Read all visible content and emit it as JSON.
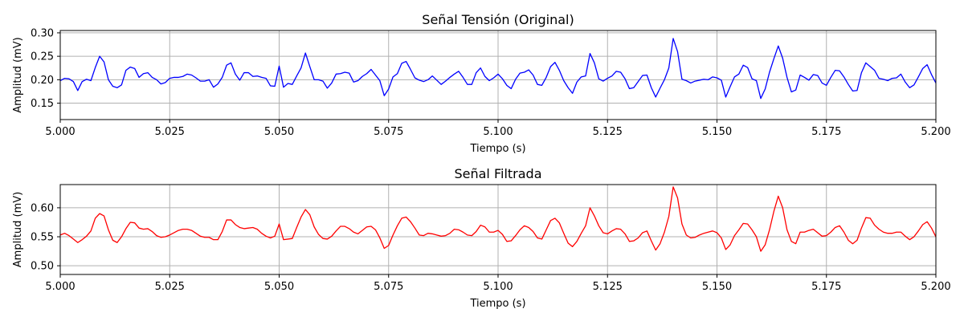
{
  "chart_data": [
    {
      "type": "line",
      "title": "Señal Tensión (Original)",
      "xlabel": "Tiempo (s)",
      "ylabel": "Amplitud (mV)",
      "xlim": [
        5.0,
        5.2
      ],
      "ylim": [
        0.115,
        0.305
      ],
      "xticks": [
        5.0,
        5.025,
        5.05,
        5.075,
        5.1,
        5.125,
        5.15,
        5.175,
        5.2
      ],
      "xtick_labels": [
        "5.000",
        "5.025",
        "5.050",
        "5.075",
        "5.100",
        "5.125",
        "5.150",
        "5.175",
        "5.200"
      ],
      "yticks": [
        0.15,
        0.2,
        0.25,
        0.3
      ],
      "ytick_labels": [
        "0.15",
        "0.20",
        "0.25",
        "0.30"
      ],
      "grid": true,
      "series": [
        {
          "color": "#0000ff",
          "x": [
            5.0,
            5.001,
            5.002,
            5.003,
            5.004,
            5.005,
            5.006,
            5.007,
            5.008,
            5.009,
            5.01,
            5.011,
            5.012,
            5.013,
            5.014,
            5.015,
            5.016,
            5.017,
            5.018,
            5.019,
            5.02,
            5.021,
            5.022,
            5.023,
            5.024,
            5.025,
            5.026,
            5.027,
            5.028,
            5.029,
            5.03,
            5.031,
            5.032,
            5.033,
            5.034,
            5.035,
            5.036,
            5.037,
            5.038,
            5.039,
            5.04,
            5.041,
            5.042,
            5.043,
            5.044,
            5.045,
            5.046,
            5.047,
            5.048,
            5.049,
            5.05,
            5.051,
            5.052,
            5.053,
            5.054,
            5.055,
            5.056,
            5.057,
            5.058,
            5.059,
            5.06,
            5.061,
            5.062,
            5.063,
            5.064,
            5.065,
            5.066,
            5.067,
            5.068,
            5.069,
            5.07,
            5.071,
            5.072,
            5.073,
            5.074,
            5.075,
            5.076,
            5.077,
            5.078,
            5.079,
            5.08,
            5.081,
            5.082,
            5.083,
            5.084,
            5.085,
            5.086,
            5.087,
            5.088,
            5.089,
            5.09,
            5.091,
            5.092,
            5.093,
            5.094,
            5.095,
            5.096,
            5.097,
            5.098,
            5.099,
            5.1,
            5.101,
            5.102,
            5.103,
            5.104,
            5.105,
            5.106,
            5.107,
            5.108,
            5.109,
            5.11,
            5.111,
            5.112,
            5.113,
            5.114,
            5.115,
            5.116,
            5.117,
            5.118,
            5.119,
            5.12,
            5.121,
            5.122,
            5.123,
            5.124,
            5.125,
            5.126,
            5.127,
            5.128,
            5.129,
            5.13,
            5.131,
            5.132,
            5.133,
            5.134,
            5.135,
            5.136,
            5.137,
            5.138,
            5.139,
            5.14,
            5.141,
            5.142,
            5.143,
            5.144,
            5.145,
            5.146,
            5.147,
            5.148,
            5.149,
            5.15,
            5.151,
            5.152,
            5.153,
            5.154,
            5.155,
            5.156,
            5.157,
            5.158,
            5.159,
            5.16,
            5.161,
            5.162,
            5.163,
            5.164,
            5.165,
            5.166,
            5.167,
            5.168,
            5.169,
            5.17,
            5.171,
            5.172,
            5.173,
            5.174,
            5.175,
            5.176,
            5.177,
            5.178,
            5.179,
            5.18,
            5.181,
            5.182,
            5.183,
            5.184,
            5.185,
            5.186,
            5.187,
            5.188,
            5.189,
            5.19,
            5.191,
            5.192,
            5.193,
            5.194,
            5.195,
            5.196,
            5.197,
            5.198,
            5.199,
            5.2
          ],
          "y": [
            0.198,
            0.203,
            0.202,
            0.196,
            0.177,
            0.196,
            0.201,
            0.198,
            0.226,
            0.25,
            0.238,
            0.2,
            0.186,
            0.183,
            0.189,
            0.22,
            0.227,
            0.224,
            0.205,
            0.213,
            0.215,
            0.205,
            0.2,
            0.191,
            0.194,
            0.203,
            0.205,
            0.205,
            0.207,
            0.212,
            0.21,
            0.204,
            0.197,
            0.197,
            0.2,
            0.184,
            0.191,
            0.205,
            0.231,
            0.236,
            0.212,
            0.199,
            0.215,
            0.215,
            0.207,
            0.208,
            0.205,
            0.203,
            0.187,
            0.186,
            0.229,
            0.184,
            0.192,
            0.19,
            0.208,
            0.225,
            0.257,
            0.228,
            0.2,
            0.2,
            0.197,
            0.182,
            0.193,
            0.212,
            0.213,
            0.216,
            0.214,
            0.195,
            0.198,
            0.207,
            0.213,
            0.222,
            0.21,
            0.198,
            0.166,
            0.18,
            0.206,
            0.213,
            0.235,
            0.239,
            0.222,
            0.204,
            0.199,
            0.196,
            0.2,
            0.208,
            0.199,
            0.19,
            0.197,
            0.205,
            0.212,
            0.218,
            0.205,
            0.19,
            0.19,
            0.215,
            0.225,
            0.207,
            0.198,
            0.204,
            0.212,
            0.202,
            0.188,
            0.181,
            0.201,
            0.214,
            0.216,
            0.221,
            0.21,
            0.19,
            0.188,
            0.205,
            0.228,
            0.237,
            0.22,
            0.198,
            0.183,
            0.171,
            0.195,
            0.206,
            0.208,
            0.256,
            0.236,
            0.202,
            0.197,
            0.203,
            0.208,
            0.218,
            0.216,
            0.202,
            0.181,
            0.183,
            0.196,
            0.209,
            0.21,
            0.183,
            0.163,
            0.182,
            0.2,
            0.225,
            0.288,
            0.26,
            0.201,
            0.198,
            0.193,
            0.197,
            0.199,
            0.201,
            0.2,
            0.206,
            0.204,
            0.199,
            0.163,
            0.185,
            0.206,
            0.212,
            0.231,
            0.226,
            0.202,
            0.198,
            0.16,
            0.18,
            0.216,
            0.245,
            0.272,
            0.246,
            0.205,
            0.174,
            0.178,
            0.21,
            0.205,
            0.199,
            0.211,
            0.209,
            0.193,
            0.188,
            0.205,
            0.22,
            0.219,
            0.206,
            0.19,
            0.176,
            0.177,
            0.215,
            0.236,
            0.228,
            0.22,
            0.203,
            0.201,
            0.198,
            0.203,
            0.204,
            0.212,
            0.195,
            0.183,
            0.189,
            0.206,
            0.224,
            0.232,
            0.211,
            0.193
          ]
        }
      ]
    },
    {
      "type": "line",
      "title": "Señal Filtrada",
      "xlabel": "Tiempo (s)",
      "ylabel": "Amplitud (mV)",
      "xlim": [
        5.0,
        5.2
      ],
      "ylim": [
        0.485,
        0.64
      ],
      "xticks": [
        5.0,
        5.025,
        5.05,
        5.075,
        5.1,
        5.125,
        5.15,
        5.175,
        5.2
      ],
      "xtick_labels": [
        "5.000",
        "5.025",
        "5.050",
        "5.075",
        "5.100",
        "5.125",
        "5.150",
        "5.175",
        "5.200"
      ],
      "yticks": [
        0.5,
        0.55,
        0.6
      ],
      "ytick_labels": [
        "0.50",
        "0.55",
        "0.60"
      ],
      "grid": true,
      "series": [
        {
          "color": "#ff0000",
          "x": [
            5.0,
            5.001,
            5.002,
            5.003,
            5.004,
            5.005,
            5.006,
            5.007,
            5.008,
            5.009,
            5.01,
            5.011,
            5.012,
            5.013,
            5.014,
            5.015,
            5.016,
            5.017,
            5.018,
            5.019,
            5.02,
            5.021,
            5.022,
            5.023,
            5.024,
            5.025,
            5.026,
            5.027,
            5.028,
            5.029,
            5.03,
            5.031,
            5.032,
            5.033,
            5.034,
            5.035,
            5.036,
            5.037,
            5.038,
            5.039,
            5.04,
            5.041,
            5.042,
            5.043,
            5.044,
            5.045,
            5.046,
            5.047,
            5.048,
            5.049,
            5.05,
            5.051,
            5.052,
            5.053,
            5.054,
            5.055,
            5.056,
            5.057,
            5.058,
            5.059,
            5.06,
            5.061,
            5.062,
            5.063,
            5.064,
            5.065,
            5.066,
            5.067,
            5.068,
            5.069,
            5.07,
            5.071,
            5.072,
            5.073,
            5.074,
            5.075,
            5.076,
            5.077,
            5.078,
            5.079,
            5.08,
            5.081,
            5.082,
            5.083,
            5.084,
            5.085,
            5.086,
            5.087,
            5.088,
            5.089,
            5.09,
            5.091,
            5.092,
            5.093,
            5.094,
            5.095,
            5.096,
            5.097,
            5.098,
            5.099,
            5.1,
            5.101,
            5.102,
            5.103,
            5.104,
            5.105,
            5.106,
            5.107,
            5.108,
            5.109,
            5.11,
            5.111,
            5.112,
            5.113,
            5.114,
            5.115,
            5.116,
            5.117,
            5.118,
            5.119,
            5.12,
            5.121,
            5.122,
            5.123,
            5.124,
            5.125,
            5.126,
            5.127,
            5.128,
            5.129,
            5.13,
            5.131,
            5.132,
            5.133,
            5.134,
            5.135,
            5.136,
            5.137,
            5.138,
            5.139,
            5.14,
            5.141,
            5.142,
            5.143,
            5.144,
            5.145,
            5.146,
            5.147,
            5.148,
            5.149,
            5.15,
            5.151,
            5.152,
            5.153,
            5.154,
            5.155,
            5.156,
            5.157,
            5.158,
            5.159,
            5.16,
            5.161,
            5.162,
            5.163,
            5.164,
            5.165,
            5.166,
            5.167,
            5.168,
            5.169,
            5.17,
            5.171,
            5.172,
            5.173,
            5.174,
            5.175,
            5.176,
            5.177,
            5.178,
            5.179,
            5.18,
            5.181,
            5.182,
            5.183,
            5.184,
            5.185,
            5.186,
            5.187,
            5.188,
            5.189,
            5.19,
            5.191,
            5.192,
            5.193,
            5.194,
            5.195,
            5.196,
            5.197,
            5.198,
            5.199,
            5.2
          ],
          "y": [
            0.553,
            0.556,
            0.552,
            0.546,
            0.54,
            0.545,
            0.551,
            0.56,
            0.582,
            0.59,
            0.586,
            0.562,
            0.544,
            0.54,
            0.55,
            0.564,
            0.575,
            0.574,
            0.565,
            0.563,
            0.564,
            0.559,
            0.552,
            0.549,
            0.55,
            0.553,
            0.557,
            0.561,
            0.563,
            0.563,
            0.561,
            0.556,
            0.551,
            0.549,
            0.549,
            0.545,
            0.545,
            0.559,
            0.579,
            0.579,
            0.571,
            0.566,
            0.564,
            0.565,
            0.566,
            0.563,
            0.556,
            0.551,
            0.548,
            0.551,
            0.572,
            0.545,
            0.546,
            0.547,
            0.566,
            0.584,
            0.597,
            0.588,
            0.567,
            0.554,
            0.547,
            0.546,
            0.551,
            0.56,
            0.568,
            0.568,
            0.564,
            0.558,
            0.555,
            0.561,
            0.567,
            0.568,
            0.562,
            0.548,
            0.53,
            0.535,
            0.553,
            0.569,
            0.582,
            0.584,
            0.576,
            0.565,
            0.553,
            0.552,
            0.556,
            0.555,
            0.553,
            0.551,
            0.552,
            0.556,
            0.563,
            0.562,
            0.558,
            0.553,
            0.552,
            0.559,
            0.57,
            0.567,
            0.558,
            0.558,
            0.561,
            0.554,
            0.542,
            0.543,
            0.552,
            0.562,
            0.569,
            0.566,
            0.559,
            0.548,
            0.546,
            0.562,
            0.578,
            0.582,
            0.574,
            0.556,
            0.539,
            0.533,
            0.542,
            0.556,
            0.569,
            0.6,
            0.586,
            0.569,
            0.557,
            0.555,
            0.56,
            0.564,
            0.563,
            0.555,
            0.542,
            0.543,
            0.548,
            0.557,
            0.56,
            0.543,
            0.527,
            0.538,
            0.558,
            0.585,
            0.636,
            0.617,
            0.572,
            0.553,
            0.548,
            0.549,
            0.553,
            0.556,
            0.558,
            0.56,
            0.557,
            0.548,
            0.528,
            0.536,
            0.552,
            0.562,
            0.573,
            0.572,
            0.562,
            0.55,
            0.525,
            0.536,
            0.562,
            0.594,
            0.62,
            0.6,
            0.562,
            0.542,
            0.538,
            0.558,
            0.558,
            0.561,
            0.563,
            0.557,
            0.551,
            0.552,
            0.558,
            0.566,
            0.569,
            0.558,
            0.544,
            0.538,
            0.544,
            0.565,
            0.583,
            0.582,
            0.57,
            0.563,
            0.558,
            0.556,
            0.556,
            0.558,
            0.558,
            0.551,
            0.545,
            0.55,
            0.56,
            0.571,
            0.576,
            0.565,
            0.55
          ]
        }
      ]
    }
  ]
}
